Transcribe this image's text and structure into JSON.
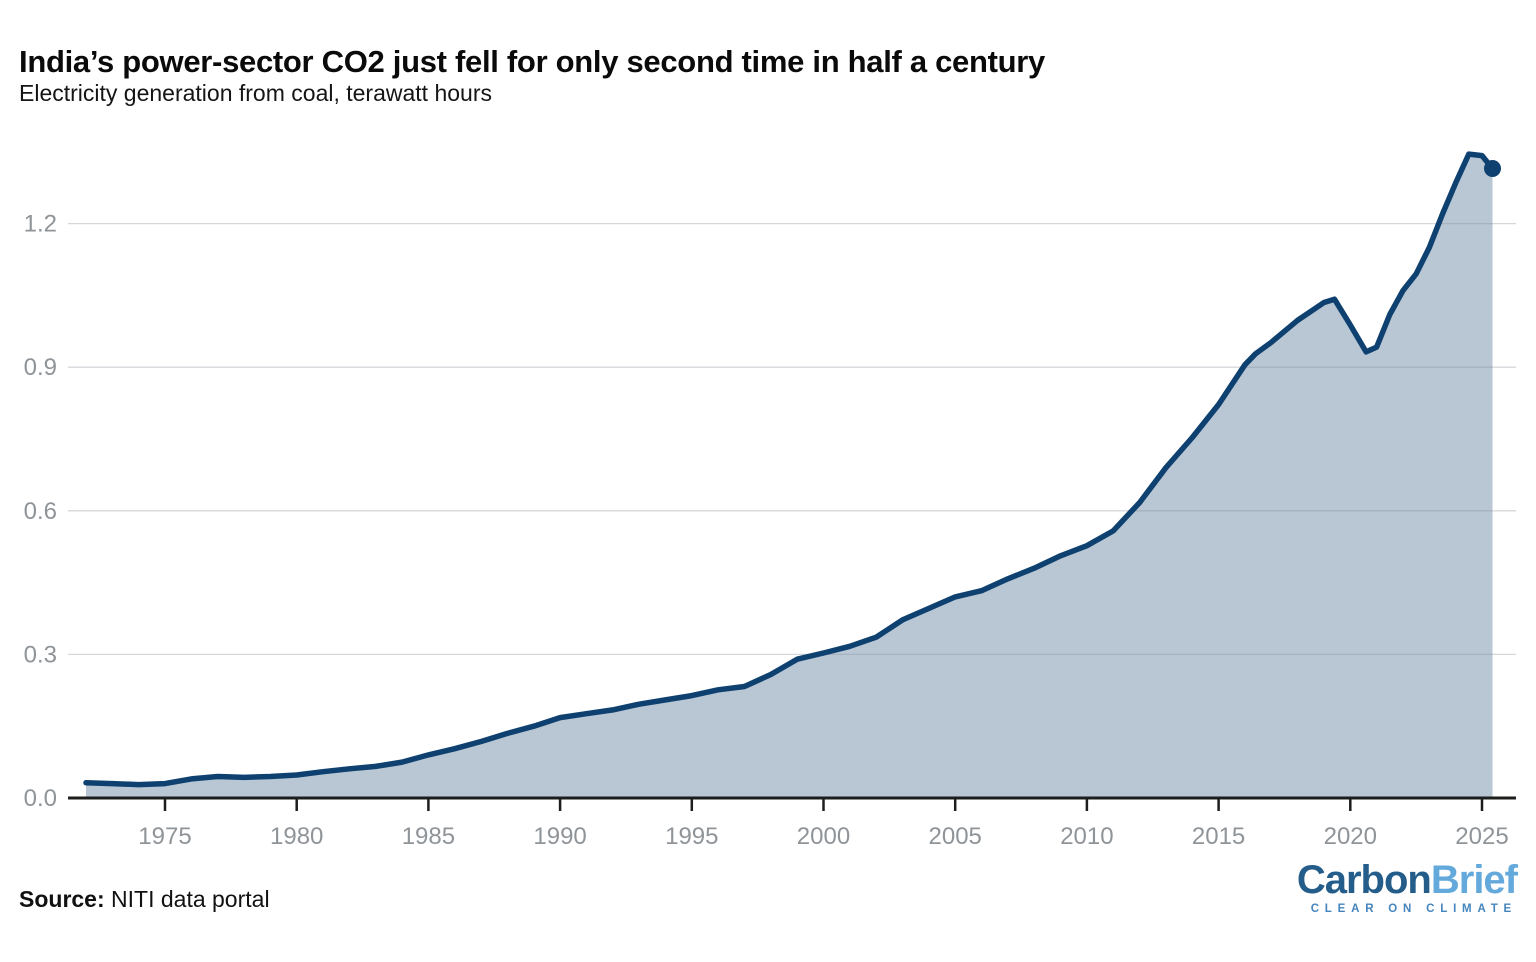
{
  "title": "India’s power-sector CO2 just fell for only second time in half a century",
  "subtitle": "Electricity generation from coal, terawatt hours",
  "source": {
    "label": "Source:",
    "text": " NITI data portal"
  },
  "logo": {
    "part1": "Carbon",
    "part2": "Brief",
    "tagline": "CLEAR ON CLIMATE"
  },
  "colors": {
    "line": "#0e416f",
    "fill": "#b9c7d5",
    "axis": "#1d1d1b",
    "grid": "rgba(128,138,146,0.33)",
    "tick_text": "#8f9499",
    "logo_dark_blue": "#245d8a",
    "logo_light_blue": "#64a9dc",
    "logo_tagline_blue": "#4585bd"
  },
  "chart_data": {
    "type": "area",
    "title": "India’s power-sector CO2 just fell for only second time in half a century",
    "subtitle": "Electricity generation from coal, terawatt hours",
    "xlabel": "",
    "ylabel": "",
    "grid": true,
    "legend_position": "none",
    "xlim": [
      1972,
      2025.4
    ],
    "ylim": [
      0,
      1.38
    ],
    "x_ticks": [
      1975,
      1980,
      1985,
      1990,
      1995,
      2000,
      2005,
      2010,
      2015,
      2020,
      2025
    ],
    "y_ticks": [
      0.0,
      0.3,
      0.6,
      0.9,
      1.2
    ],
    "end_dot": true,
    "x": [
      1972,
      1973,
      1974,
      1975,
      1976,
      1977,
      1978,
      1979,
      1980,
      1981,
      1982,
      1983,
      1984,
      1985,
      1986,
      1987,
      1988,
      1989,
      1990,
      1991,
      1992,
      1993,
      1994,
      1995,
      1996,
      1997,
      1998,
      1999,
      2000,
      2001,
      2002,
      2003,
      2004,
      2005,
      2006,
      2007,
      2008,
      2009,
      2010,
      2011,
      2012,
      2013,
      2014,
      2015,
      2016,
      2016.4,
      2017,
      2018,
      2019,
      2019.4,
      2020,
      2020.6,
      2021,
      2021.5,
      2022,
      2022.5,
      2023,
      2023.5,
      2024,
      2024.5,
      2025,
      2025.4
    ],
    "values": [
      0.032,
      0.03,
      0.028,
      0.03,
      0.04,
      0.045,
      0.043,
      0.045,
      0.048,
      0.055,
      0.061,
      0.066,
      0.075,
      0.09,
      0.103,
      0.118,
      0.135,
      0.15,
      0.168,
      0.176,
      0.184,
      0.196,
      0.205,
      0.214,
      0.226,
      0.233,
      0.258,
      0.29,
      0.303,
      0.317,
      0.336,
      0.372,
      0.396,
      0.42,
      0.433,
      0.458,
      0.48,
      0.506,
      0.527,
      0.558,
      0.617,
      0.69,
      0.753,
      0.822,
      0.905,
      0.928,
      0.952,
      0.998,
      1.035,
      1.042,
      0.988,
      0.932,
      0.942,
      1.01,
      1.06,
      1.095,
      1.15,
      1.22,
      1.285,
      1.345,
      1.342,
      1.315
    ]
  }
}
